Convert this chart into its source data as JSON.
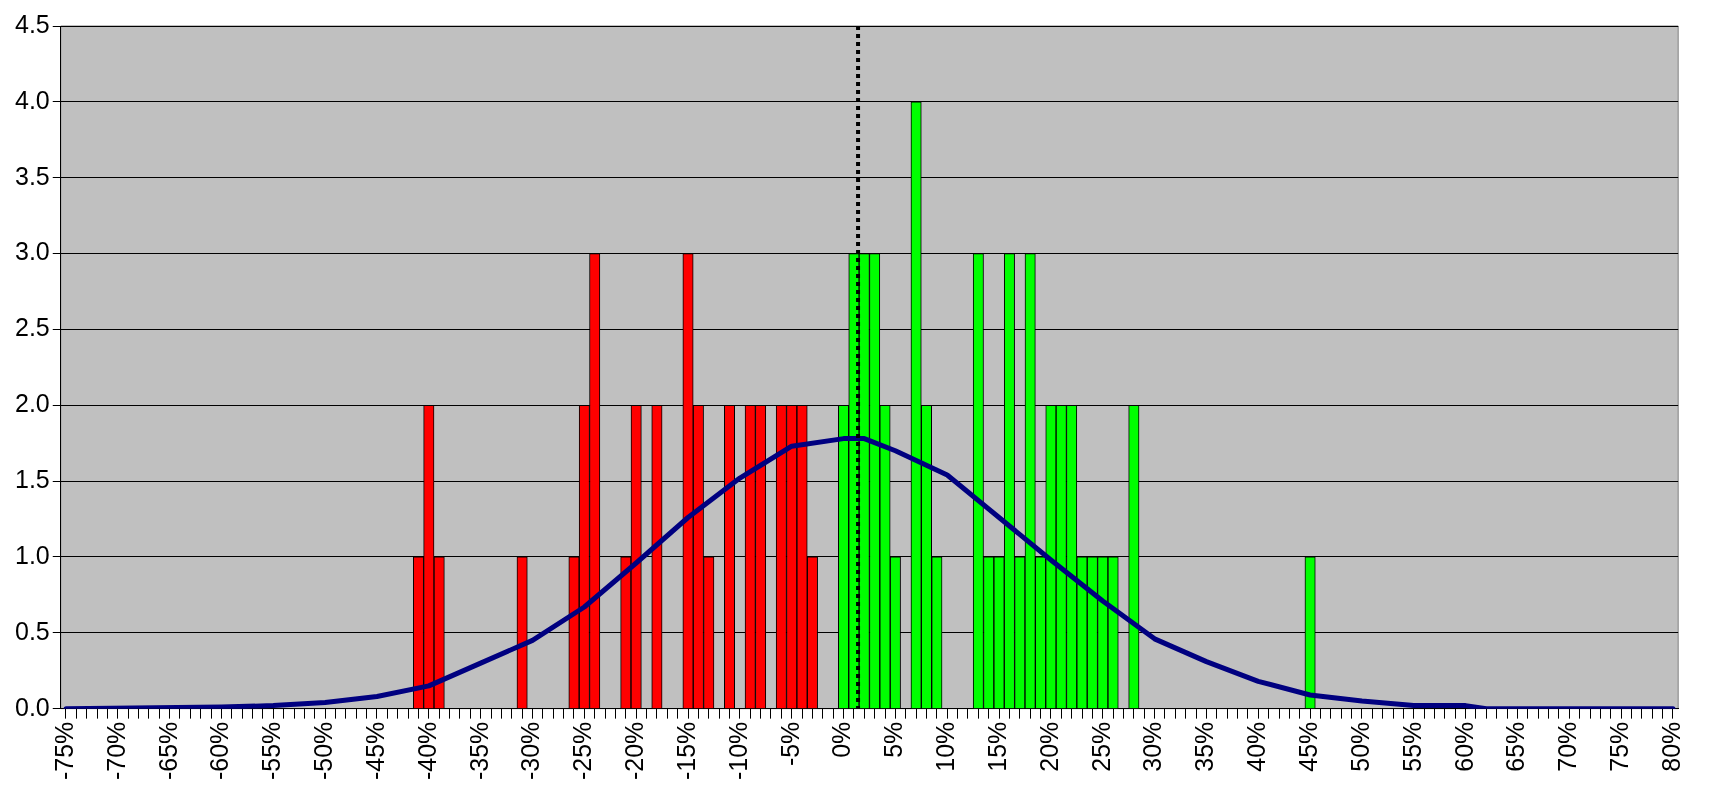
{
  "chart_data": {
    "type": "bar",
    "grid": "y",
    "legend": false,
    "marker": "none",
    "line_style": "solid",
    "xlim": [
      -75.5,
      80.5
    ],
    "xticks": [
      {
        "value": -75,
        "label": "-75%"
      },
      {
        "value": -74,
        "label": null
      },
      {
        "value": -73,
        "label": null
      },
      {
        "value": -72,
        "label": null
      },
      {
        "value": -71,
        "label": null
      },
      {
        "value": -70,
        "label": "-70%"
      },
      {
        "value": -69,
        "label": null
      },
      {
        "value": -68,
        "label": null
      },
      {
        "value": -67,
        "label": null
      },
      {
        "value": -66,
        "label": null
      },
      {
        "value": -65,
        "label": "-65%"
      },
      {
        "value": -64,
        "label": null
      },
      {
        "value": -63,
        "label": null
      },
      {
        "value": -62,
        "label": null
      },
      {
        "value": -61,
        "label": null
      },
      {
        "value": -60,
        "label": "-60%"
      },
      {
        "value": -59,
        "label": null
      },
      {
        "value": -58,
        "label": null
      },
      {
        "value": -57,
        "label": null
      },
      {
        "value": -56,
        "label": null
      },
      {
        "value": -55,
        "label": "-55%"
      },
      {
        "value": -54,
        "label": null
      },
      {
        "value": -53,
        "label": null
      },
      {
        "value": -52,
        "label": null
      },
      {
        "value": -51,
        "label": null
      },
      {
        "value": -50,
        "label": "-50%"
      },
      {
        "value": -49,
        "label": null
      },
      {
        "value": -48,
        "label": null
      },
      {
        "value": -47,
        "label": null
      },
      {
        "value": -46,
        "label": null
      },
      {
        "value": -45,
        "label": "-45%"
      },
      {
        "value": -44,
        "label": null
      },
      {
        "value": -43,
        "label": null
      },
      {
        "value": -42,
        "label": null
      },
      {
        "value": -41,
        "label": null
      },
      {
        "value": -40,
        "label": "-40%"
      },
      {
        "value": -39,
        "label": null
      },
      {
        "value": -38,
        "label": null
      },
      {
        "value": -37,
        "label": null
      },
      {
        "value": -36,
        "label": null
      },
      {
        "value": -35,
        "label": "-35%"
      },
      {
        "value": -34,
        "label": null
      },
      {
        "value": -33,
        "label": null
      },
      {
        "value": -32,
        "label": null
      },
      {
        "value": -31,
        "label": null
      },
      {
        "value": -30,
        "label": "-30%"
      },
      {
        "value": -29,
        "label": null
      },
      {
        "value": -28,
        "label": null
      },
      {
        "value": -27,
        "label": null
      },
      {
        "value": -26,
        "label": null
      },
      {
        "value": -25,
        "label": "-25%"
      },
      {
        "value": -24,
        "label": null
      },
      {
        "value": -23,
        "label": null
      },
      {
        "value": -22,
        "label": null
      },
      {
        "value": -21,
        "label": null
      },
      {
        "value": -20,
        "label": "-20%"
      },
      {
        "value": -19,
        "label": null
      },
      {
        "value": -18,
        "label": null
      },
      {
        "value": -17,
        "label": null
      },
      {
        "value": -16,
        "label": null
      },
      {
        "value": -15,
        "label": "-15%"
      },
      {
        "value": -14,
        "label": null
      },
      {
        "value": -13,
        "label": null
      },
      {
        "value": -12,
        "label": null
      },
      {
        "value": -11,
        "label": null
      },
      {
        "value": -10,
        "label": "-10%"
      },
      {
        "value": -9,
        "label": null
      },
      {
        "value": -8,
        "label": null
      },
      {
        "value": -7,
        "label": null
      },
      {
        "value": -6,
        "label": null
      },
      {
        "value": -5,
        "label": "-5%"
      },
      {
        "value": -4,
        "label": null
      },
      {
        "value": -3,
        "label": null
      },
      {
        "value": -2,
        "label": null
      },
      {
        "value": -1,
        "label": null
      },
      {
        "value": 0,
        "label": "0%"
      },
      {
        "value": 1,
        "label": null
      },
      {
        "value": 2,
        "label": null
      },
      {
        "value": 3,
        "label": null
      },
      {
        "value": 4,
        "label": null
      },
      {
        "value": 5,
        "label": "5%"
      },
      {
        "value": 6,
        "label": null
      },
      {
        "value": 7,
        "label": null
      },
      {
        "value": 8,
        "label": null
      },
      {
        "value": 9,
        "label": null
      },
      {
        "value": 10,
        "label": "10%"
      },
      {
        "value": 11,
        "label": null
      },
      {
        "value": 12,
        "label": null
      },
      {
        "value": 13,
        "label": null
      },
      {
        "value": 14,
        "label": null
      },
      {
        "value": 15,
        "label": "15%"
      },
      {
        "value": 16,
        "label": null
      },
      {
        "value": 17,
        "label": null
      },
      {
        "value": 18,
        "label": null
      },
      {
        "value": 19,
        "label": null
      },
      {
        "value": 20,
        "label": "20%"
      },
      {
        "value": 21,
        "label": null
      },
      {
        "value": 22,
        "label": null
      },
      {
        "value": 23,
        "label": null
      },
      {
        "value": 24,
        "label": null
      },
      {
        "value": 25,
        "label": "25%"
      },
      {
        "value": 26,
        "label": null
      },
      {
        "value": 27,
        "label": null
      },
      {
        "value": 28,
        "label": null
      },
      {
        "value": 29,
        "label": null
      },
      {
        "value": 30,
        "label": "30%"
      },
      {
        "value": 31,
        "label": null
      },
      {
        "value": 32,
        "label": null
      },
      {
        "value": 33,
        "label": null
      },
      {
        "value": 34,
        "label": null
      },
      {
        "value": 35,
        "label": "35%"
      },
      {
        "value": 36,
        "label": null
      },
      {
        "value": 37,
        "label": null
      },
      {
        "value": 38,
        "label": null
      },
      {
        "value": 39,
        "label": null
      },
      {
        "value": 40,
        "label": "40%"
      },
      {
        "value": 41,
        "label": null
      },
      {
        "value": 42,
        "label": null
      },
      {
        "value": 43,
        "label": null
      },
      {
        "value": 44,
        "label": null
      },
      {
        "value": 45,
        "label": "45%"
      },
      {
        "value": 46,
        "label": null
      },
      {
        "value": 47,
        "label": null
      },
      {
        "value": 48,
        "label": null
      },
      {
        "value": 49,
        "label": null
      },
      {
        "value": 50,
        "label": "50%"
      },
      {
        "value": 51,
        "label": null
      },
      {
        "value": 52,
        "label": null
      },
      {
        "value": 53,
        "label": null
      },
      {
        "value": 54,
        "label": null
      },
      {
        "value": 55,
        "label": "55%"
      },
      {
        "value": 56,
        "label": null
      },
      {
        "value": 57,
        "label": null
      },
      {
        "value": 58,
        "label": null
      },
      {
        "value": 59,
        "label": null
      },
      {
        "value": 60,
        "label": "60%"
      },
      {
        "value": 61,
        "label": null
      },
      {
        "value": 62,
        "label": null
      },
      {
        "value": 63,
        "label": null
      },
      {
        "value": 64,
        "label": null
      },
      {
        "value": 65,
        "label": "65%"
      },
      {
        "value": 66,
        "label": null
      },
      {
        "value": 67,
        "label": null
      },
      {
        "value": 68,
        "label": null
      },
      {
        "value": 69,
        "label": null
      },
      {
        "value": 70,
        "label": "70%"
      },
      {
        "value": 71,
        "label": null
      },
      {
        "value": 72,
        "label": null
      },
      {
        "value": 73,
        "label": null
      },
      {
        "value": 74,
        "label": null
      },
      {
        "value": 75,
        "label": "75%"
      },
      {
        "value": 76,
        "label": null
      },
      {
        "value": 77,
        "label": null
      },
      {
        "value": 78,
        "label": null
      },
      {
        "value": 79,
        "label": null
      },
      {
        "value": 80,
        "label": "80%"
      }
    ],
    "ylim": [
      0,
      4.5
    ],
    "yticks": [
      {
        "value": 0,
        "label": "0.0"
      },
      {
        "value": 0.5,
        "label": "0.5"
      },
      {
        "value": 1,
        "label": "1.0"
      },
      {
        "value": 1.5,
        "label": "1.5"
      },
      {
        "value": 2,
        "label": "2.0"
      },
      {
        "value": 2.5,
        "label": "2.5"
      },
      {
        "value": 3,
        "label": "3.0"
      },
      {
        "value": 3.5,
        "label": "3.5"
      },
      {
        "value": 4,
        "label": "4.0"
      },
      {
        "value": 4.5,
        "label": "4.5"
      }
    ],
    "series": [
      {
        "color": "#ff0000",
        "x": [
          -41,
          -40,
          -39,
          -31,
          -26,
          -25,
          -24,
          -21,
          -20,
          -18,
          -15,
          -14,
          -13,
          -11,
          -9,
          -8,
          -6,
          -5,
          -4,
          -3
        ],
        "values": [
          1,
          2,
          1,
          1,
          1,
          2,
          3,
          1,
          2,
          2,
          3,
          2,
          1,
          2,
          2,
          2,
          2,
          2,
          2,
          1
        ]
      },
      {
        "color": "#00ff00",
        "x": [
          0,
          1,
          2,
          3,
          4,
          5,
          7,
          8,
          9,
          13,
          14,
          15,
          16,
          17,
          18,
          19,
          20,
          21,
          22,
          23,
          24,
          25,
          26,
          28,
          45
        ],
        "values": [
          2,
          3,
          3,
          3,
          2,
          1,
          4,
          2,
          1,
          3,
          1,
          1,
          3,
          1,
          3,
          1,
          2,
          2,
          2,
          1,
          1,
          1,
          1,
          2,
          1
        ]
      },
      {
        "type": "line",
        "color": "#000080",
        "x": [
          -75,
          -60,
          -55,
          -50,
          -45,
          -40,
          -35,
          -30,
          -25,
          -20,
          -15,
          -10,
          -5,
          0,
          2,
          5,
          10,
          15,
          20,
          25,
          30,
          35,
          40,
          45,
          50,
          55,
          60,
          62,
          80
        ],
        "values": [
          0,
          0.01,
          0.02,
          0.04,
          0.08,
          0.15,
          0.3,
          0.45,
          0.67,
          0.96,
          1.26,
          1.52,
          1.73,
          1.78,
          1.78,
          1.7,
          1.54,
          1.26,
          0.98,
          0.71,
          0.46,
          0.31,
          0.18,
          0.09,
          0.05,
          0.02,
          0.02,
          0,
          0
        ]
      }
    ],
    "ref_lines": [
      {
        "axis": "x",
        "value": 1.4,
        "color": "#000000",
        "line_style": "dotted"
      }
    ]
  }
}
